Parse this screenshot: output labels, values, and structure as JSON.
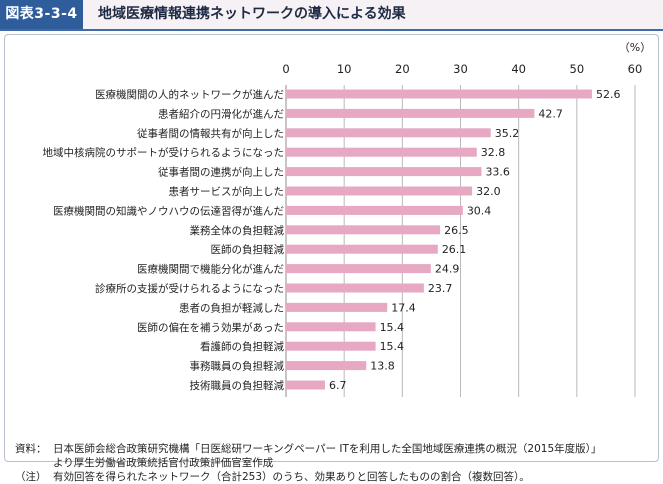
{
  "figure": {
    "label": "図表3-3-4",
    "title": "地域医療情報連携ネットワークの導入による効果"
  },
  "chart_data": {
    "type": "bar",
    "orientation": "horizontal",
    "unit": "（%）",
    "xlim": [
      0,
      60
    ],
    "ticks": [
      0,
      10,
      20,
      30,
      40,
      50,
      60
    ],
    "grid": true,
    "categories": [
      "医療機関間の人的ネットワークが進んだ",
      "患者紹介の円滑化が進んだ",
      "従事者間の情報共有が向上した",
      "地域中核病院のサポートが受けられるようになった",
      "従事者間の連携が向上した",
      "患者サービスが向上した",
      "医療機関間の知識やノウハウの伝達習得が進んだ",
      "業務全体の負担軽減",
      "医師の負担軽減",
      "医療機関間で機能分化が進んだ",
      "診療所の支援が受けられるようになった",
      "患者の負担が軽減した",
      "医師の偏在を補う効果があった",
      "看護師の負担軽減",
      "事務職員の負担軽減",
      "技術職員の負担軽減"
    ],
    "values": [
      52.6,
      42.7,
      35.2,
      32.8,
      33.6,
      32.0,
      30.4,
      26.5,
      26.1,
      24.9,
      23.7,
      17.4,
      15.4,
      15.4,
      13.8,
      6.7
    ],
    "value_labels": [
      "52.6",
      "42.7",
      "35.2",
      "32.8",
      "33.6",
      "32.0",
      "30.4",
      "26.5",
      "26.1",
      "24.9",
      "23.7",
      "17.4",
      "15.4",
      "15.4",
      "13.8",
      "6.7"
    ],
    "bar_color": "#e7a8c4",
    "grid_color": "#b9b9b9"
  },
  "source": {
    "label": "資料：",
    "text": "日本医師会総合政策研究機構「日医総研ワーキングペーパー ITを利用した全国地域医療連携の概況（2015年度版）」",
    "text2": "より厚生労働省政策統括官付政策評価官室作成"
  },
  "note": {
    "label": "（注）",
    "text": "有効回答を得られたネットワーク（合計253）のうち、効果ありと回答したものの割合（複数回答）。"
  }
}
